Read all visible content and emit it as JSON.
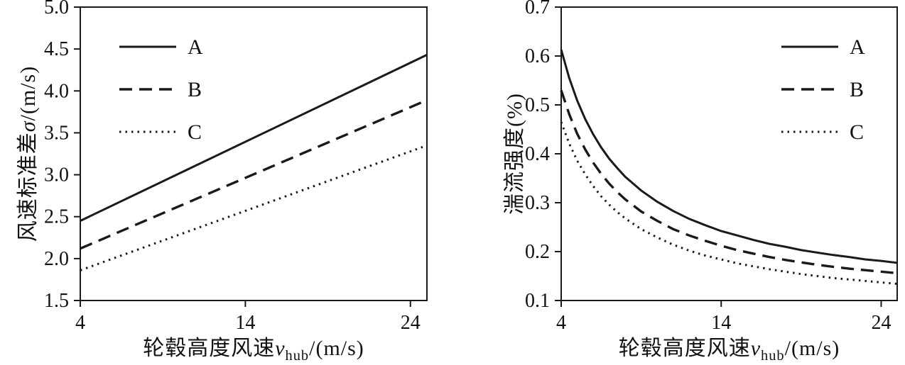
{
  "figure": {
    "background": "#ffffff",
    "line_color": "#1a1a1a"
  },
  "chart_data": [
    {
      "type": "line",
      "title": "",
      "ylabel_prefix": "风速标准差",
      "ylabel_var": "σ",
      "ylabel_suffix": "/(m/s)",
      "xlabel_prefix": "轮毂高度风速",
      "xlabel_var": "v",
      "xlabel_sub": "hub",
      "xlabel_suffix": "/(m/s)",
      "xlim": [
        4,
        25
      ],
      "ylim": [
        1.5,
        5.0
      ],
      "xticks": [
        "4",
        "14",
        "24"
      ],
      "yticks": [
        "1.5",
        "2.0",
        "2.5",
        "3.0",
        "3.5",
        "4.0",
        "4.5",
        "5.0"
      ],
      "grid": false,
      "legend_position": "upper-left",
      "x": [
        4,
        25
      ],
      "series": [
        {
          "name": "A",
          "line_style": "solid",
          "values": [
            2.45,
            4.43
          ]
        },
        {
          "name": "B",
          "line_style": "dashed",
          "values": [
            2.12,
            3.89
          ]
        },
        {
          "name": "C",
          "line_style": "dotted",
          "values": [
            1.86,
            3.35
          ]
        }
      ]
    },
    {
      "type": "line",
      "title": "",
      "ylabel_prefix": "湍流强度",
      "ylabel_var": "",
      "ylabel_suffix": "(%)",
      "xlabel_prefix": "轮毂高度风速",
      "xlabel_var": "v",
      "xlabel_sub": "hub",
      "xlabel_suffix": "/(m/s)",
      "xlim": [
        4,
        25
      ],
      "ylim": [
        0.1,
        0.7
      ],
      "xticks": [
        "4",
        "14",
        "24"
      ],
      "yticks": [
        "0.1",
        "0.2",
        "0.3",
        "0.4",
        "0.5",
        "0.6",
        "0.7"
      ],
      "grid": false,
      "legend_position": "upper-right",
      "x": [
        4,
        4.5,
        5,
        5.5,
        6,
        6.5,
        7,
        7.5,
        8,
        9,
        10,
        11,
        12,
        13,
        14,
        15,
        16,
        17,
        18,
        19,
        20,
        21,
        22,
        23,
        24,
        25
      ],
      "series": [
        {
          "name": "A",
          "line_style": "solid",
          "values": [
            0.613,
            0.555,
            0.509,
            0.471,
            0.44,
            0.413,
            0.39,
            0.371,
            0.353,
            0.325,
            0.302,
            0.283,
            0.267,
            0.254,
            0.242,
            0.233,
            0.224,
            0.216,
            0.21,
            0.203,
            0.198,
            0.193,
            0.189,
            0.184,
            0.181,
            0.177
          ]
        },
        {
          "name": "B",
          "line_style": "dashed",
          "values": [
            0.53,
            0.481,
            0.441,
            0.409,
            0.382,
            0.359,
            0.339,
            0.322,
            0.307,
            0.282,
            0.263,
            0.246,
            0.233,
            0.222,
            0.212,
            0.203,
            0.196,
            0.189,
            0.183,
            0.178,
            0.173,
            0.169,
            0.165,
            0.162,
            0.159,
            0.156
          ]
        },
        {
          "name": "C",
          "line_style": "dotted",
          "values": [
            0.465,
            0.421,
            0.386,
            0.358,
            0.334,
            0.313,
            0.296,
            0.281,
            0.268,
            0.246,
            0.229,
            0.214,
            0.202,
            0.192,
            0.184,
            0.176,
            0.17,
            0.164,
            0.159,
            0.154,
            0.15,
            0.146,
            0.143,
            0.14,
            0.137,
            0.134
          ]
        }
      ]
    }
  ]
}
